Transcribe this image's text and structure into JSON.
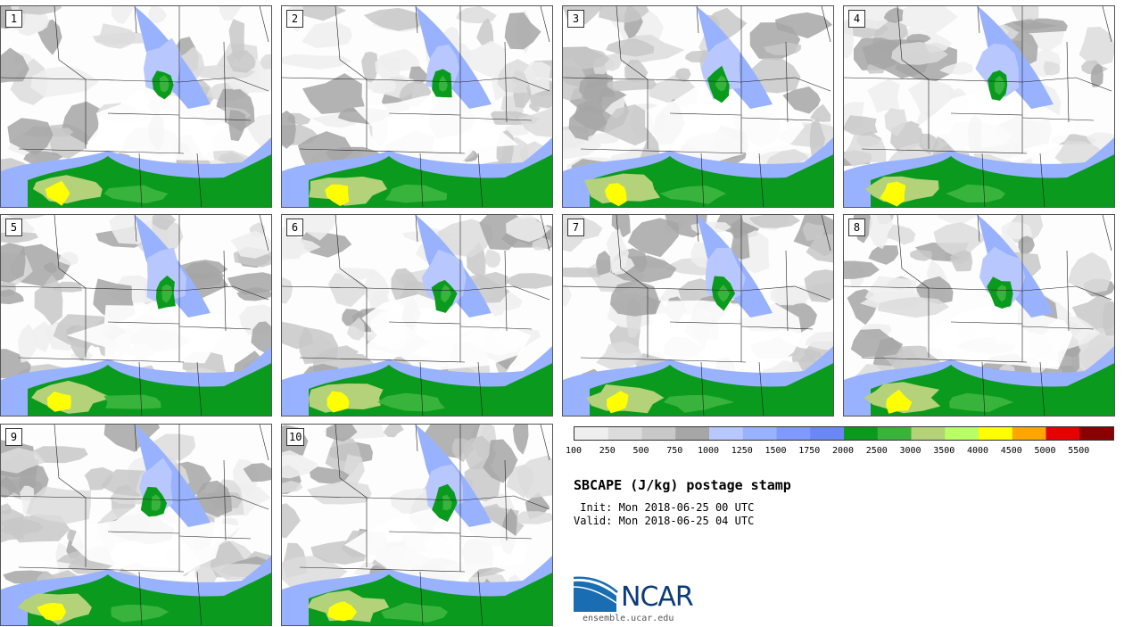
{
  "title": "SBCAPE (J/kg) postage stamp",
  "init": "Init: Mon 2018-06-25 00 UTC",
  "valid": "Valid: Mon 2018-06-25 04 UTC",
  "org": "NCAR",
  "url": "ensemble.ucar.edu",
  "colorbar": {
    "ticks": [
      "100",
      "250",
      "500",
      "750",
      "1000",
      "1250",
      "1500",
      "1750",
      "2000",
      "2500",
      "3000",
      "3500",
      "4000",
      "4500",
      "5000",
      "5500"
    ],
    "colors": [
      "#efefef",
      "#dcdcdc",
      "#c8c8c8",
      "#a6a6a6",
      "#b8c8ff",
      "#99b2ff",
      "#7f99ff",
      "#6b86f5",
      "#0a9b1e",
      "#38b43c",
      "#b4d279",
      "#b8ff63",
      "#ffff00",
      "#ffa500",
      "#e60000",
      "#8b0000"
    ]
  },
  "members": [
    {
      "label": "1"
    },
    {
      "label": "2"
    },
    {
      "label": "3"
    },
    {
      "label": "4"
    },
    {
      "label": "5"
    },
    {
      "label": "6"
    },
    {
      "label": "7"
    },
    {
      "label": "8"
    },
    {
      "label": "9"
    },
    {
      "label": "10"
    }
  ]
}
